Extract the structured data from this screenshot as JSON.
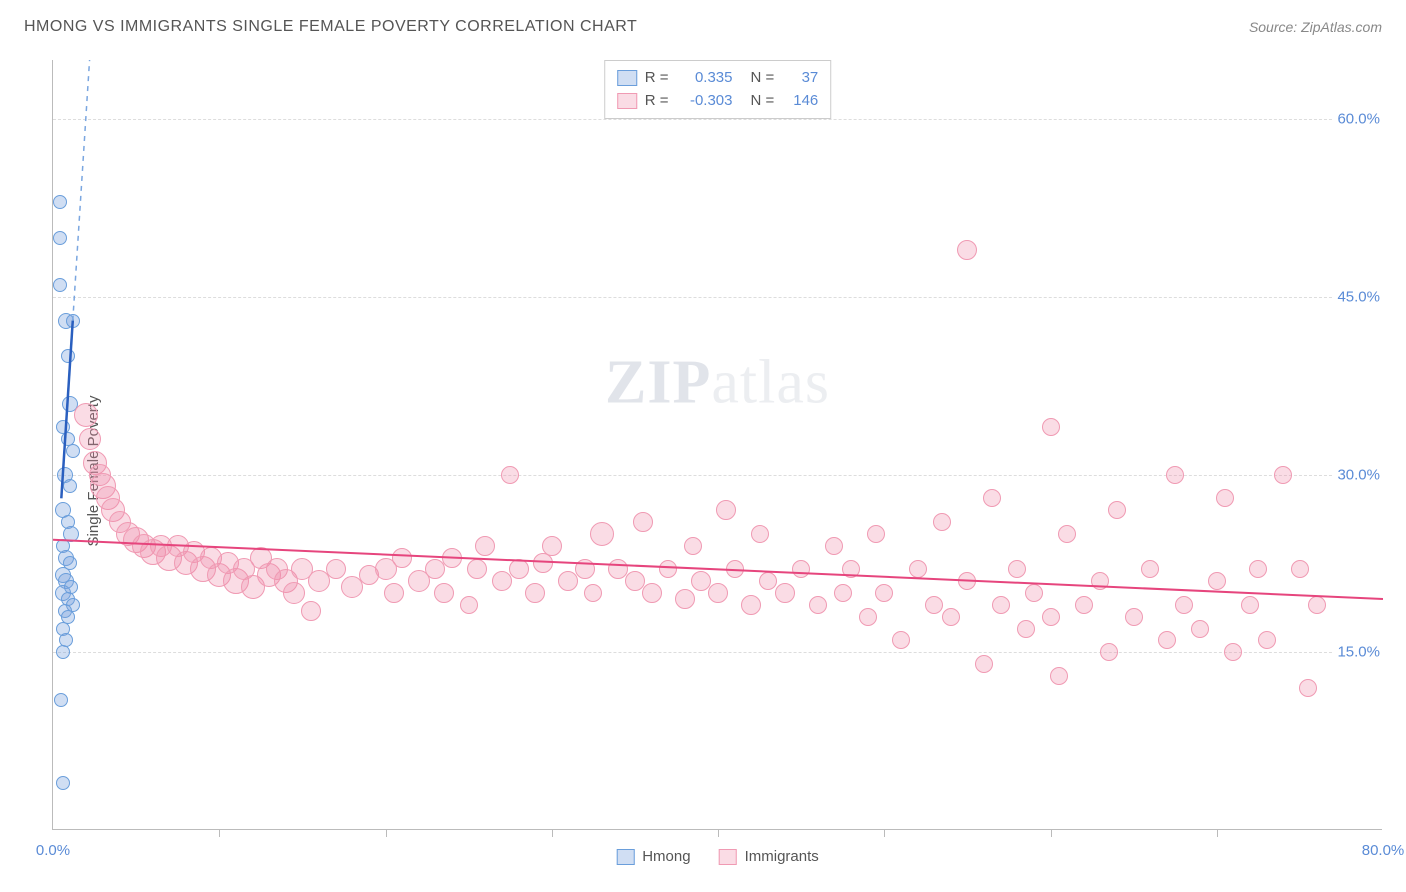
{
  "title": "HMONG VS IMMIGRANTS SINGLE FEMALE POVERTY CORRELATION CHART",
  "source": "Source: ZipAtlas.com",
  "ylabel": "Single Female Poverty",
  "watermark": {
    "bold": "ZIP",
    "rest": "atlas"
  },
  "chart": {
    "type": "scatter",
    "xlim": [
      0,
      80
    ],
    "ylim": [
      0,
      65
    ],
    "background_color": "#ffffff",
    "grid_color": "#dddddd",
    "axis_color": "#bbbbbb",
    "tick_label_color": "#5a8bd6",
    "tick_fontsize": 15,
    "yticks": [
      15,
      30,
      45,
      60
    ],
    "ytick_labels": [
      "15.0%",
      "30.0%",
      "45.0%",
      "60.0%"
    ],
    "xticks": [
      10,
      20,
      30,
      40,
      50,
      60,
      70
    ],
    "xaxis_end_labels": {
      "left": "0.0%",
      "right": "80.0%"
    }
  },
  "series": [
    {
      "name": "Hmong",
      "fill_color": "rgba(120,160,220,0.35)",
      "stroke_color": "#6a9edb",
      "trend_color": "#2a5fbf",
      "trend_dash_color": "#7aa6e0",
      "marker_radius_min": 6,
      "marker_radius_max": 10,
      "trend": {
        "x1": 0.5,
        "y1": 28,
        "x2": 2.2,
        "y2": 65,
        "solid_until_y": 43
      },
      "points": [
        {
          "x": 0.4,
          "y": 53,
          "r": 7
        },
        {
          "x": 0.4,
          "y": 50,
          "r": 7
        },
        {
          "x": 0.4,
          "y": 46,
          "r": 7
        },
        {
          "x": 0.8,
          "y": 43,
          "r": 8
        },
        {
          "x": 1.2,
          "y": 43,
          "r": 7
        },
        {
          "x": 0.9,
          "y": 40,
          "r": 7
        },
        {
          "x": 1.0,
          "y": 36,
          "r": 8
        },
        {
          "x": 0.6,
          "y": 34,
          "r": 7
        },
        {
          "x": 0.9,
          "y": 33,
          "r": 7
        },
        {
          "x": 1.2,
          "y": 32,
          "r": 7
        },
        {
          "x": 0.7,
          "y": 30,
          "r": 8
        },
        {
          "x": 1.0,
          "y": 29,
          "r": 7
        },
        {
          "x": 0.6,
          "y": 27,
          "r": 8
        },
        {
          "x": 0.9,
          "y": 26,
          "r": 7
        },
        {
          "x": 1.1,
          "y": 25,
          "r": 8
        },
        {
          "x": 0.6,
          "y": 24,
          "r": 7
        },
        {
          "x": 0.8,
          "y": 23,
          "r": 8
        },
        {
          "x": 1.0,
          "y": 22.5,
          "r": 7
        },
        {
          "x": 0.6,
          "y": 21.5,
          "r": 8
        },
        {
          "x": 0.8,
          "y": 21,
          "r": 8
        },
        {
          "x": 1.1,
          "y": 20.5,
          "r": 7
        },
        {
          "x": 0.6,
          "y": 20,
          "r": 8
        },
        {
          "x": 0.9,
          "y": 19.5,
          "r": 7
        },
        {
          "x": 1.2,
          "y": 19,
          "r": 7
        },
        {
          "x": 0.7,
          "y": 18.5,
          "r": 7
        },
        {
          "x": 0.9,
          "y": 18,
          "r": 7
        },
        {
          "x": 0.6,
          "y": 17,
          "r": 7
        },
        {
          "x": 0.8,
          "y": 16,
          "r": 7
        },
        {
          "x": 0.6,
          "y": 15,
          "r": 7
        },
        {
          "x": 0.5,
          "y": 11,
          "r": 7
        },
        {
          "x": 0.6,
          "y": 4,
          "r": 7
        }
      ]
    },
    {
      "name": "Immigrants",
      "fill_color": "rgba(240,140,170,0.30)",
      "stroke_color": "#f09ab3",
      "trend_color": "#e6457d",
      "marker_radius_min": 7,
      "marker_radius_max": 14,
      "trend": {
        "x1": 0,
        "y1": 24.5,
        "x2": 80,
        "y2": 19.5
      },
      "points": [
        {
          "x": 2.0,
          "y": 35,
          "r": 12
        },
        {
          "x": 2.2,
          "y": 33,
          "r": 11
        },
        {
          "x": 2.5,
          "y": 31,
          "r": 12
        },
        {
          "x": 2.8,
          "y": 30,
          "r": 11
        },
        {
          "x": 3.0,
          "y": 29,
          "r": 13
        },
        {
          "x": 3.3,
          "y": 28,
          "r": 12
        },
        {
          "x": 3.6,
          "y": 27,
          "r": 12
        },
        {
          "x": 4.0,
          "y": 26,
          "r": 11
        },
        {
          "x": 4.5,
          "y": 25,
          "r": 12
        },
        {
          "x": 5.0,
          "y": 24.5,
          "r": 13
        },
        {
          "x": 5.5,
          "y": 24,
          "r": 12
        },
        {
          "x": 6.0,
          "y": 23.5,
          "r": 13
        },
        {
          "x": 6.5,
          "y": 24,
          "r": 11
        },
        {
          "x": 7.0,
          "y": 23,
          "r": 13
        },
        {
          "x": 7.5,
          "y": 24,
          "r": 11
        },
        {
          "x": 8.0,
          "y": 22.5,
          "r": 12
        },
        {
          "x": 8.5,
          "y": 23.5,
          "r": 11
        },
        {
          "x": 9.0,
          "y": 22,
          "r": 13
        },
        {
          "x": 9.5,
          "y": 23,
          "r": 11
        },
        {
          "x": 10,
          "y": 21.5,
          "r": 12
        },
        {
          "x": 10.5,
          "y": 22.5,
          "r": 11
        },
        {
          "x": 11,
          "y": 21,
          "r": 13
        },
        {
          "x": 11.5,
          "y": 22,
          "r": 11
        },
        {
          "x": 12,
          "y": 20.5,
          "r": 12
        },
        {
          "x": 12.5,
          "y": 23,
          "r": 11
        },
        {
          "x": 13,
          "y": 21.5,
          "r": 12
        },
        {
          "x": 13.5,
          "y": 22,
          "r": 11
        },
        {
          "x": 14,
          "y": 21,
          "r": 12
        },
        {
          "x": 14.5,
          "y": 20,
          "r": 11
        },
        {
          "x": 15,
          "y": 22,
          "r": 11
        },
        {
          "x": 15.5,
          "y": 18.5,
          "r": 10
        },
        {
          "x": 16,
          "y": 21,
          "r": 11
        },
        {
          "x": 17,
          "y": 22,
          "r": 10
        },
        {
          "x": 18,
          "y": 20.5,
          "r": 11
        },
        {
          "x": 19,
          "y": 21.5,
          "r": 10
        },
        {
          "x": 20,
          "y": 22,
          "r": 11
        },
        {
          "x": 20.5,
          "y": 20,
          "r": 10
        },
        {
          "x": 21,
          "y": 23,
          "r": 10
        },
        {
          "x": 22,
          "y": 21,
          "r": 11
        },
        {
          "x": 23,
          "y": 22,
          "r": 10
        },
        {
          "x": 23.5,
          "y": 20,
          "r": 10
        },
        {
          "x": 24,
          "y": 23,
          "r": 10
        },
        {
          "x": 25,
          "y": 19,
          "r": 9
        },
        {
          "x": 25.5,
          "y": 22,
          "r": 10
        },
        {
          "x": 26,
          "y": 24,
          "r": 10
        },
        {
          "x": 27,
          "y": 21,
          "r": 10
        },
        {
          "x": 27.5,
          "y": 30,
          "r": 9
        },
        {
          "x": 28,
          "y": 22,
          "r": 10
        },
        {
          "x": 29,
          "y": 20,
          "r": 10
        },
        {
          "x": 29.5,
          "y": 22.5,
          "r": 10
        },
        {
          "x": 30,
          "y": 24,
          "r": 10
        },
        {
          "x": 31,
          "y": 21,
          "r": 10
        },
        {
          "x": 32,
          "y": 22,
          "r": 10
        },
        {
          "x": 32.5,
          "y": 20,
          "r": 9
        },
        {
          "x": 33,
          "y": 25,
          "r": 12
        },
        {
          "x": 34,
          "y": 22,
          "r": 10
        },
        {
          "x": 35,
          "y": 21,
          "r": 10
        },
        {
          "x": 35.5,
          "y": 26,
          "r": 10
        },
        {
          "x": 36,
          "y": 20,
          "r": 10
        },
        {
          "x": 37,
          "y": 22,
          "r": 9
        },
        {
          "x": 38,
          "y": 19.5,
          "r": 10
        },
        {
          "x": 38.5,
          "y": 24,
          "r": 9
        },
        {
          "x": 39,
          "y": 21,
          "r": 10
        },
        {
          "x": 40,
          "y": 20,
          "r": 10
        },
        {
          "x": 40.5,
          "y": 27,
          "r": 10
        },
        {
          "x": 41,
          "y": 22,
          "r": 9
        },
        {
          "x": 42,
          "y": 19,
          "r": 10
        },
        {
          "x": 42.5,
          "y": 25,
          "r": 9
        },
        {
          "x": 43,
          "y": 21,
          "r": 9
        },
        {
          "x": 44,
          "y": 20,
          "r": 10
        },
        {
          "x": 45,
          "y": 22,
          "r": 9
        },
        {
          "x": 46,
          "y": 19,
          "r": 9
        },
        {
          "x": 47,
          "y": 24,
          "r": 9
        },
        {
          "x": 47.5,
          "y": 20,
          "r": 9
        },
        {
          "x": 48,
          "y": 22,
          "r": 9
        },
        {
          "x": 49,
          "y": 18,
          "r": 9
        },
        {
          "x": 49.5,
          "y": 25,
          "r": 9
        },
        {
          "x": 50,
          "y": 20,
          "r": 9
        },
        {
          "x": 51,
          "y": 16,
          "r": 9
        },
        {
          "x": 52,
          "y": 22,
          "r": 9
        },
        {
          "x": 53,
          "y": 19,
          "r": 9
        },
        {
          "x": 53.5,
          "y": 26,
          "r": 9
        },
        {
          "x": 54,
          "y": 18,
          "r": 9
        },
        {
          "x": 55,
          "y": 21,
          "r": 9
        },
        {
          "x": 55,
          "y": 49,
          "r": 10
        },
        {
          "x": 56,
          "y": 14,
          "r": 9
        },
        {
          "x": 56.5,
          "y": 28,
          "r": 9
        },
        {
          "x": 57,
          "y": 19,
          "r": 9
        },
        {
          "x": 58,
          "y": 22,
          "r": 9
        },
        {
          "x": 58.5,
          "y": 17,
          "r": 9
        },
        {
          "x": 59,
          "y": 20,
          "r": 9
        },
        {
          "x": 60,
          "y": 18,
          "r": 9
        },
        {
          "x": 60,
          "y": 34,
          "r": 9
        },
        {
          "x": 60.5,
          "y": 13,
          "r": 9
        },
        {
          "x": 61,
          "y": 25,
          "r": 9
        },
        {
          "x": 62,
          "y": 19,
          "r": 9
        },
        {
          "x": 63,
          "y": 21,
          "r": 9
        },
        {
          "x": 63.5,
          "y": 15,
          "r": 9
        },
        {
          "x": 64,
          "y": 27,
          "r": 9
        },
        {
          "x": 65,
          "y": 18,
          "r": 9
        },
        {
          "x": 66,
          "y": 22,
          "r": 9
        },
        {
          "x": 67,
          "y": 16,
          "r": 9
        },
        {
          "x": 67.5,
          "y": 30,
          "r": 9
        },
        {
          "x": 68,
          "y": 19,
          "r": 9
        },
        {
          "x": 69,
          "y": 17,
          "r": 9
        },
        {
          "x": 70,
          "y": 21,
          "r": 9
        },
        {
          "x": 70.5,
          "y": 28,
          "r": 9
        },
        {
          "x": 71,
          "y": 15,
          "r": 9
        },
        {
          "x": 72,
          "y": 19,
          "r": 9
        },
        {
          "x": 72.5,
          "y": 22,
          "r": 9
        },
        {
          "x": 73,
          "y": 16,
          "r": 9
        },
        {
          "x": 74,
          "y": 30,
          "r": 9
        },
        {
          "x": 75,
          "y": 22,
          "r": 9
        },
        {
          "x": 75.5,
          "y": 12,
          "r": 9
        },
        {
          "x": 76,
          "y": 19,
          "r": 9
        }
      ]
    }
  ],
  "legend_top": [
    {
      "swatch_fill": "rgba(120,160,220,0.35)",
      "swatch_border": "#6a9edb",
      "r_label": "R =",
      "r_val": "0.335",
      "n_label": "N =",
      "n_val": "37"
    },
    {
      "swatch_fill": "rgba(240,140,170,0.30)",
      "swatch_border": "#f09ab3",
      "r_label": "R =",
      "r_val": "-0.303",
      "n_label": "N =",
      "n_val": "146"
    }
  ],
  "legend_bottom": [
    {
      "swatch_fill": "rgba(120,160,220,0.35)",
      "swatch_border": "#6a9edb",
      "label": "Hmong"
    },
    {
      "swatch_fill": "rgba(240,140,170,0.30)",
      "swatch_border": "#f09ab3",
      "label": "Immigrants"
    }
  ]
}
